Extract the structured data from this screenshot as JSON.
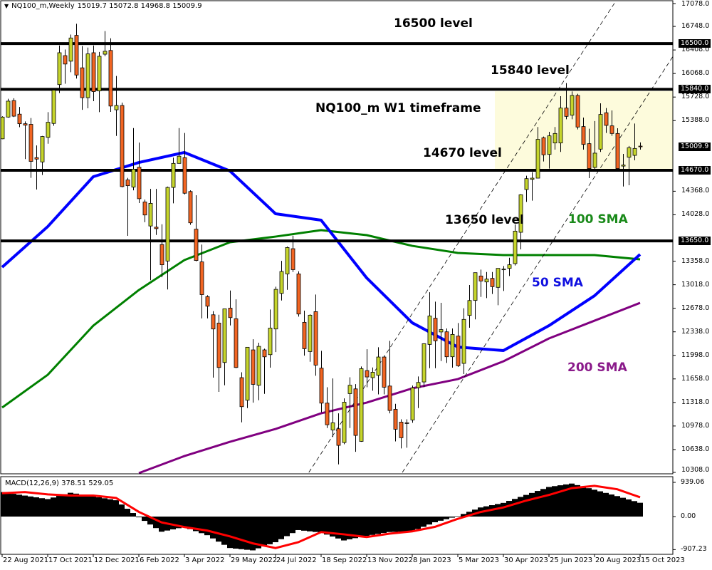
{
  "header": {
    "symbol_timeframe": "NQ100_m,Weekly",
    "ohlc_text": "15019.7 15072.8 14968.8 15009.9"
  },
  "macd_header": "MACD(12,26,9) 378.51 529.05",
  "annotations": {
    "level_16500": "16500 level",
    "level_15840": "15840 level",
    "timeframe": "NQ100_m W1 timeframe",
    "level_14670": "14670 level",
    "level_13650": "13650 level",
    "sma100": "100 SMA",
    "sma50": "50 SMA",
    "sma200": "200 SMA"
  },
  "colors": {
    "bull": "#c6d52c",
    "bear": "#f26522",
    "sma50": "#0000ff",
    "sma100": "#008000",
    "sma200": "#800080",
    "signal": "#ff0000",
    "histogram": "#000000",
    "zone": "#fdfbdc",
    "annotation_sma100": "#1a8a1a",
    "annotation_sma50": "#1010e0",
    "annotation_sma200": "#8a1a8a"
  },
  "chart_data": [
    {
      "type": "candlestick",
      "symbol": "NQ100_m",
      "interval": "Weekly",
      "ylim": [
        10308.0,
        17078.0
      ],
      "x_tick_labels": [
        "22 Aug 2021",
        "17 Oct 2021",
        "12 Dec 2021",
        "6 Feb 2022",
        "3 Apr 2022",
        "29 May 2022",
        "24 Jul 2022",
        "18 Sep 2022",
        "13 Nov 2022",
        "8 Jan 2023",
        "5 Mar 2023",
        "30 Apr 2023",
        "25 Jun 2023",
        "20 Aug 2023",
        "15 Oct 2023"
      ],
      "y_tick_labels": [
        "17078.0",
        "16748.0",
        "16408.0",
        "16068.0",
        "15728.0",
        "15388.0",
        "14368.0",
        "14028.0",
        "13358.0",
        "13018.0",
        "12678.0",
        "12338.0",
        "11998.0",
        "11658.0",
        "11318.0",
        "10978.0",
        "10638.0",
        "10308.0"
      ],
      "price_labels": [
        "16500.0",
        "15840.0",
        "15009.9",
        "14670.0",
        "13650.0"
      ],
      "horizontal_levels": [
        16500,
        15840,
        14670,
        13650
      ],
      "current_price": 15009.9,
      "ohlc_columns": [
        "open",
        "high",
        "low",
        "close"
      ],
      "ohlc": [
        [
          15125,
          15450,
          15120,
          15439
        ],
        [
          15439,
          15703,
          15430,
          15669
        ],
        [
          15677,
          15711,
          15440,
          15452
        ],
        [
          15481,
          15585,
          15293,
          15343
        ],
        [
          15343,
          15376,
          14832,
          15322
        ],
        [
          15334,
          15426,
          14561,
          14799
        ],
        [
          14853,
          15029,
          14393,
          14832
        ],
        [
          14791,
          15167,
          14602,
          15159
        ],
        [
          15146,
          15510,
          15054,
          15364
        ],
        [
          15347,
          15857,
          15313,
          15828
        ],
        [
          15908,
          16472,
          15786,
          16368
        ],
        [
          16326,
          16414,
          15920,
          16205
        ],
        [
          16246,
          16631,
          16087,
          16581
        ],
        [
          16619,
          16786,
          15995,
          16046
        ],
        [
          16150,
          16464,
          15544,
          15719
        ],
        [
          15719,
          16443,
          15565,
          16351
        ],
        [
          16368,
          16472,
          15669,
          15807
        ],
        [
          15816,
          16380,
          15510,
          16317
        ],
        [
          16347,
          16681,
          16317,
          16389
        ],
        [
          16401,
          16577,
          15514,
          15598
        ],
        [
          15544,
          16033,
          15167,
          15606
        ],
        [
          15606,
          15648,
          14423,
          14435
        ],
        [
          14531,
          14561,
          13724,
          14448
        ],
        [
          14427,
          15280,
          14381,
          14686
        ],
        [
          14715,
          15071,
          14197,
          14260
        ],
        [
          14213,
          14247,
          13921,
          14025
        ],
        [
          13866,
          14402,
          13084,
          14193
        ],
        [
          13849,
          14402,
          13737,
          13828
        ],
        [
          13598,
          13891,
          13126,
          13306
        ],
        [
          13360,
          14435,
          12950,
          14423
        ],
        [
          14423,
          14853,
          14193,
          14770
        ],
        [
          14770,
          15280,
          14770,
          14874
        ],
        [
          14853,
          15209,
          14322,
          14339
        ],
        [
          14364,
          14381,
          13883,
          13912
        ],
        [
          13820,
          14310,
          13356,
          13368
        ],
        [
          13348,
          13598,
          12532,
          12875
        ],
        [
          12846,
          12866,
          12532,
          12708
        ],
        [
          12584,
          12636,
          11676,
          12379
        ],
        [
          12464,
          12584,
          11470,
          11823
        ],
        [
          11895,
          12670,
          11566,
          12670
        ],
        [
          12680,
          12934,
          12430,
          12543
        ],
        [
          12526,
          12807,
          11813,
          11823
        ],
        [
          11676,
          11754,
          11031,
          11257
        ],
        [
          11350,
          12115,
          11237,
          12115
        ],
        [
          12077,
          12231,
          11315,
          11579
        ],
        [
          11566,
          12180,
          11350,
          12128
        ],
        [
          12077,
          12094,
          11442,
          11977
        ],
        [
          12008,
          12660,
          11820,
          12392
        ],
        [
          12379,
          12989,
          12046,
          12951
        ],
        [
          12893,
          13363,
          12790,
          13209
        ],
        [
          13174,
          13569,
          12945,
          13555
        ],
        [
          13538,
          13727,
          13202,
          13236
        ],
        [
          13174,
          13212,
          12557,
          12595
        ],
        [
          12475,
          12643,
          11994,
          12094
        ],
        [
          12053,
          12591,
          11905,
          12578
        ],
        [
          12629,
          12876,
          11703,
          11857
        ],
        [
          11813,
          12063,
          11178,
          11308
        ],
        [
          11308,
          11538,
          10948,
          10996
        ],
        [
          10921,
          11665,
          10818,
          11024
        ],
        [
          10938,
          11161,
          10424,
          10698
        ],
        [
          10739,
          11377,
          10715,
          11322
        ],
        [
          11446,
          11682,
          10948,
          11566
        ],
        [
          11514,
          11583,
          10605,
          10842
        ],
        [
          10756,
          11837,
          10749,
          11806
        ],
        [
          11778,
          12087,
          11538,
          11686
        ],
        [
          11676,
          11823,
          11487,
          11754
        ],
        [
          11710,
          12115,
          11435,
          11974
        ],
        [
          11974,
          11991,
          11435,
          11538
        ],
        [
          11555,
          12207,
          11161,
          11202
        ],
        [
          11219,
          11298,
          10756,
          10931
        ],
        [
          11034,
          11075,
          10654,
          10808
        ],
        [
          11024,
          11075,
          10664,
          11017
        ],
        [
          11065,
          11562,
          11024,
          11528
        ],
        [
          11531,
          11693,
          11237,
          11607
        ],
        [
          11614,
          12173,
          11538,
          12166
        ],
        [
          12156,
          12910,
          11813,
          12567
        ],
        [
          12534,
          12774,
          11813,
          12208
        ],
        [
          12336,
          12757,
          11916,
          12370
        ],
        [
          12338,
          12386,
          11889,
          11978
        ],
        [
          11978,
          12386,
          11820,
          12300
        ],
        [
          12276,
          12465,
          11831,
          11848
        ],
        [
          11882,
          12678,
          11728,
          12517
        ],
        [
          12575,
          13014,
          12396,
          12790
        ],
        [
          12791,
          13192,
          12517,
          13192
        ],
        [
          13144,
          13237,
          12842,
          13072
        ],
        [
          13058,
          13202,
          12825,
          13099
        ],
        [
          13110,
          13202,
          12884,
          12990
        ],
        [
          12980,
          13254,
          12722,
          13254
        ],
        [
          13237,
          13288,
          12928,
          13244
        ],
        [
          13254,
          13408,
          13144,
          13306
        ],
        [
          13323,
          13888,
          13295,
          13792
        ],
        [
          13775,
          14324,
          13528,
          14317
        ],
        [
          14393,
          14592,
          14214,
          14550
        ],
        [
          14540,
          14643,
          14232,
          14557
        ],
        [
          14557,
          15295,
          14557,
          15117
        ],
        [
          15140,
          15158,
          14798,
          14894
        ],
        [
          14900,
          15226,
          14695,
          15168
        ],
        [
          15065,
          15295,
          14969,
          15202
        ],
        [
          15065,
          15741,
          14935,
          15569
        ],
        [
          15569,
          15929,
          15408,
          15449
        ],
        [
          15466,
          15809,
          15408,
          15751
        ],
        [
          15751,
          15775,
          15261,
          15295
        ],
        [
          15302,
          15432,
          14969,
          15044
        ],
        [
          15055,
          15271,
          14557,
          14695
        ],
        [
          14712,
          15381,
          14677,
          14918
        ],
        [
          14976,
          15638,
          14935,
          15477
        ],
        [
          15501,
          15569,
          15209,
          15319
        ],
        [
          15312,
          15535,
          15168,
          15202
        ],
        [
          15202,
          15278,
          14695,
          14695
        ],
        [
          14731,
          14907,
          14437,
          14746
        ],
        [
          14859,
          15021,
          14454,
          14996
        ],
        [
          14886,
          15346,
          14815,
          14986
        ],
        [
          15019.7,
          15072.8,
          14968.8,
          15009.9
        ]
      ],
      "moving_averages": {
        "sample_dates": [
          "22 Aug 2021",
          "17 Oct 2021",
          "12 Dec 2021",
          "6 Feb 2022",
          "3 Apr 2022",
          "29 May 2022",
          "24 Jul 2022",
          "18 Sep 2022",
          "13 Nov 2022",
          "8 Jan 2023",
          "5 Mar 2023",
          "30 Apr 2023",
          "25 Jun 2023",
          "20 Aug 2023",
          "15 Oct 2023"
        ],
        "sma50": [
          13271,
          13857,
          14578,
          14783,
          14928,
          14660,
          14043,
          13950,
          13116,
          12468,
          12118,
          12067,
          12427,
          12859,
          13456
        ],
        "sma100": [
          11244,
          11717,
          12427,
          12941,
          13374,
          13631,
          13713,
          13806,
          13734,
          13579,
          13477,
          13446,
          13446,
          13446,
          13384
        ],
        "sma200": [
          null,
          null,
          null,
          10280,
          10544,
          10750,
          10935,
          11161,
          11316,
          11522,
          11655,
          11912,
          12242,
          12499,
          12756
        ]
      },
      "trend_channel": [
        {
          "points": [
            {
              "date": "18 Sep 2022",
              "price": 10580
            },
            {
              "date": "20 Aug 2023",
              "price": 16641
            }
          ]
        },
        {
          "points": [
            {
              "date": "8 Jan 2023",
              "price": 10528
            },
            {
              "date": "15 Oct 2023",
              "price": 15586
            }
          ]
        }
      ],
      "highlight_zone": {
        "from_date": "23 Apr 2023",
        "price_low": 14670,
        "price_high": 15812
      }
    },
    {
      "type": "bar+line",
      "indicator": "MACD(12,26,9)",
      "macd_last": 378.51,
      "signal_last": 529.05,
      "y_tick_labels": [
        "939.06",
        "0.00",
        "-907.23"
      ],
      "ylim": [
        -907.23,
        939.06
      ],
      "sample_every_weeks": 4,
      "histogram": [
        672,
        576,
        480,
        653,
        557,
        448,
        -20,
        -416,
        -288,
        -512,
        -864,
        -928,
        -704,
        -371,
        -440,
        -656,
        -531,
        -425,
        -406,
        -156,
        12,
        250,
        375,
        594,
        812,
        906,
        737,
        562,
        378.51
      ],
      "signal": [
        640,
        672,
        608,
        576,
        576,
        512,
        128,
        -160,
        -288,
        -384,
        -544,
        -736,
        -864,
        -704,
        -425,
        -488,
        -563,
        -469,
        -406,
        -281,
        -62,
        125,
        250,
        438,
        594,
        781,
        844,
        750,
        529.05
      ]
    }
  ]
}
